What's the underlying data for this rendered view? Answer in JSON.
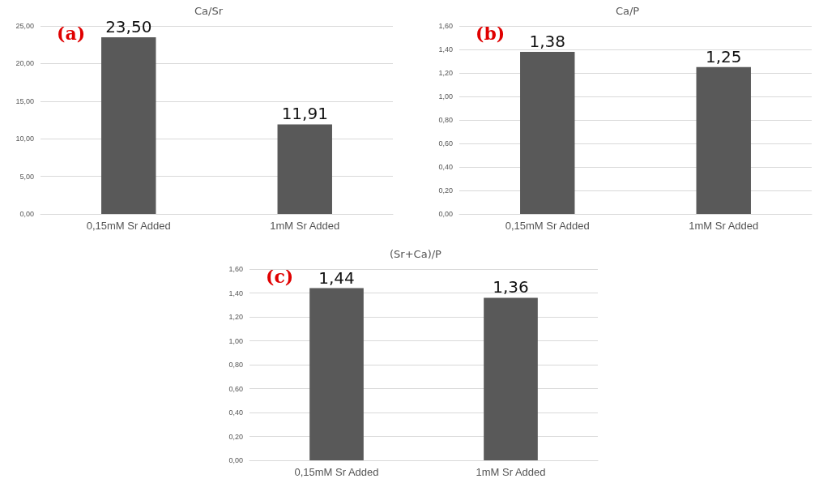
{
  "chart_data": [
    {
      "type": "bar",
      "title": "Ca/Sr",
      "categories": [
        "0,15mM Sr Added",
        "1mM Sr Added"
      ],
      "values": [
        23.5,
        11.91
      ],
      "value_labels": [
        "23,50",
        "11,91"
      ],
      "color": "#595959",
      "ylim": [
        0,
        25
      ],
      "yticks": [
        {
          "value": 0,
          "label": "0,00"
        },
        {
          "value": 5,
          "label": "5,00"
        },
        {
          "value": 10,
          "label": "10,00"
        },
        {
          "value": 15,
          "label": "15,00"
        },
        {
          "value": 20,
          "label": "20,00"
        },
        {
          "value": 25,
          "label": "25,00"
        }
      ],
      "grid": "y",
      "annotations": [
        "(a)"
      ]
    },
    {
      "type": "bar",
      "title": "Ca/P",
      "categories": [
        "0,15mM Sr Added",
        "1mM Sr Added"
      ],
      "values": [
        1.38,
        1.25
      ],
      "value_labels": [
        "1,38",
        "1,25"
      ],
      "color": "#595959",
      "ylim": [
        0,
        1.6
      ],
      "yticks": [
        {
          "value": 0,
          "label": "0,00"
        },
        {
          "value": 0.2,
          "label": "0,20"
        },
        {
          "value": 0.4,
          "label": "0,40"
        },
        {
          "value": 0.6,
          "label": "0,60"
        },
        {
          "value": 0.8,
          "label": "0,80"
        },
        {
          "value": 1,
          "label": "1,00"
        },
        {
          "value": 1.2,
          "label": "1,20"
        },
        {
          "value": 1.4,
          "label": "1,40"
        },
        {
          "value": 1.6,
          "label": "1,60"
        }
      ],
      "grid": "y",
      "annotations": [
        "(b)"
      ]
    },
    {
      "type": "bar",
      "title": "(Sr+Ca)/P",
      "categories": [
        "0,15mM Sr Added",
        "1mM Sr Added"
      ],
      "values": [
        1.44,
        1.36
      ],
      "value_labels": [
        "1,44",
        "1,36"
      ],
      "color": "#595959",
      "ylim": [
        0,
        1.6
      ],
      "yticks": [
        {
          "value": 0,
          "label": "0,00"
        },
        {
          "value": 0.2,
          "label": "0,20"
        },
        {
          "value": 0.4,
          "label": "0,40"
        },
        {
          "value": 0.6,
          "label": "0,60"
        },
        {
          "value": 0.8,
          "label": "0,80"
        },
        {
          "value": 1,
          "label": "1,00"
        },
        {
          "value": 1.2,
          "label": "1,20"
        },
        {
          "value": 1.4,
          "label": "1,40"
        },
        {
          "value": 1.6,
          "label": "1,60"
        }
      ],
      "grid": "y",
      "annotations": [
        "(c)"
      ]
    }
  ]
}
